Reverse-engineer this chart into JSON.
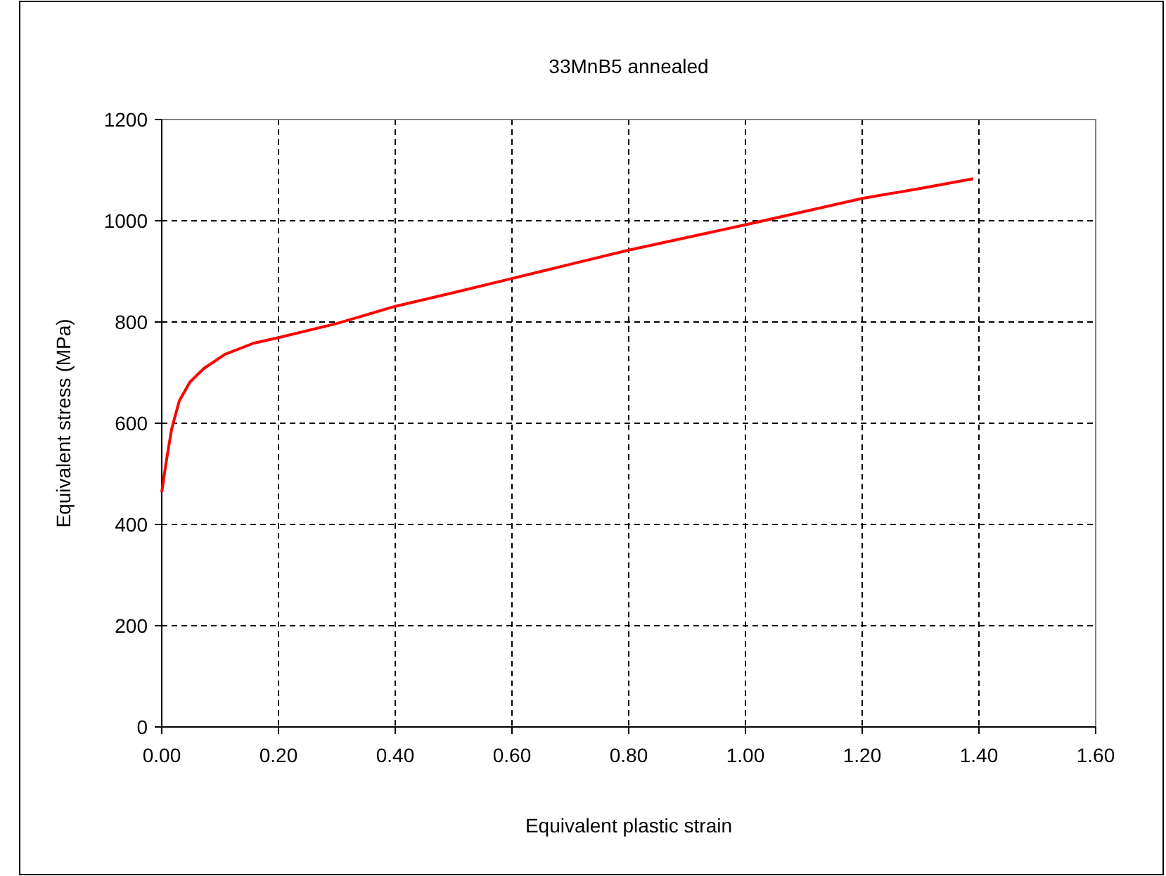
{
  "chart_data": {
    "type": "line",
    "title": "33MnB5 annealed",
    "xlabel": "Equivalent plastic strain",
    "ylabel": "Equivalent stress (MPa)",
    "x": [
      0,
      0.007,
      0.017,
      0.03,
      0.048,
      0.072,
      0.108,
      0.157,
      0.2,
      0.3,
      0.4,
      0.5,
      0.6,
      0.7,
      0.8,
      0.9,
      1.0,
      1.1,
      1.2,
      1.3,
      1.39
    ],
    "series": [
      {
        "color": "#ff0000",
        "values": [
          464,
          519,
          589,
          644,
          681,
          708,
          736,
          758,
          769,
          797,
          831,
          858,
          886,
          914,
          942,
          967,
          992,
          1018,
          1044,
          1064,
          1083
        ]
      }
    ],
    "xlim": [
      0,
      1.6
    ],
    "xticks": [
      {
        "value": 0,
        "label": "0.00"
      },
      {
        "value": 0.2,
        "label": "0.20"
      },
      {
        "value": 0.4,
        "label": "0.40"
      },
      {
        "value": 0.6,
        "label": "0.60"
      },
      {
        "value": 0.8,
        "label": "0.80"
      },
      {
        "value": 1,
        "label": "1.00"
      },
      {
        "value": 1.2,
        "label": "1.20"
      },
      {
        "value": 1.4,
        "label": "1.40"
      },
      {
        "value": 1.6,
        "label": "1.60"
      }
    ],
    "ylim": [
      0,
      1200
    ],
    "yticks": [
      0,
      200,
      400,
      600,
      800,
      1000,
      1200
    ],
    "grid": true,
    "marker": "none",
    "line_style": "solid"
  }
}
